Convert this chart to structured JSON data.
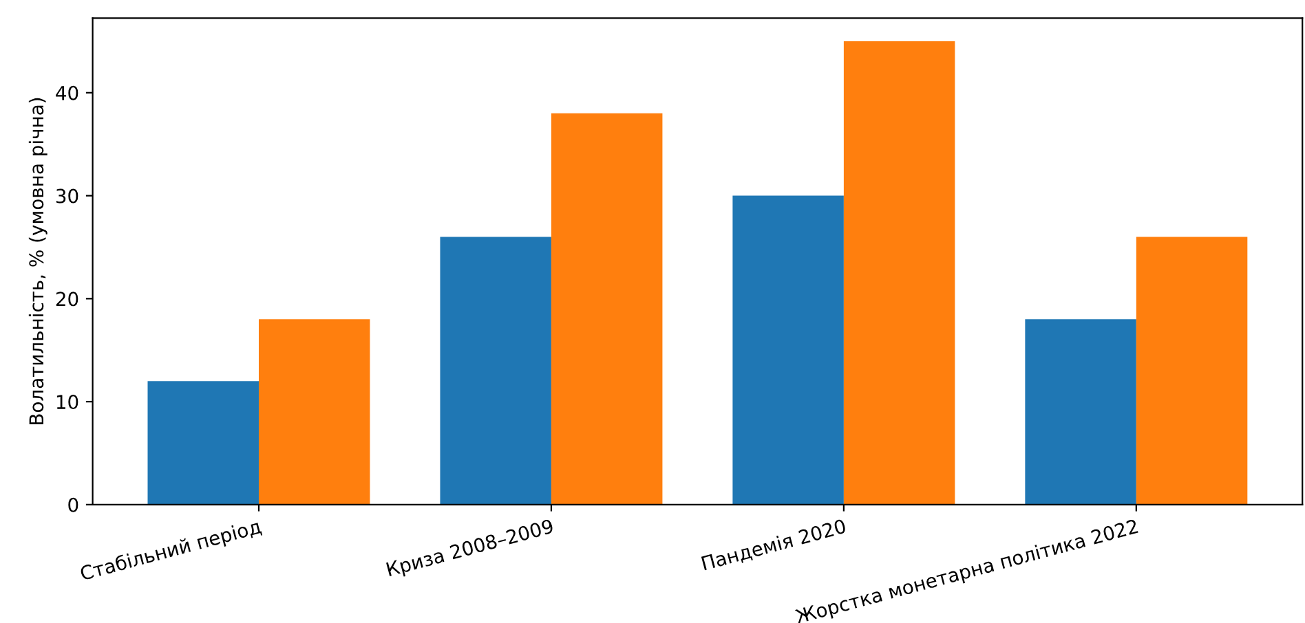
{
  "chart_data": {
    "type": "bar",
    "ylabel": "Волатильність, % (умовна річна)",
    "categories": [
      "Стабільний період",
      "Криза 2008–2009",
      "Пандемія 2020",
      "Жорстка монетарна політика 2022"
    ],
    "series": [
      {
        "color": "#1f77b4",
        "values": [
          12,
          26,
          30,
          18
        ]
      },
      {
        "color": "#ff7f0e",
        "values": [
          18,
          38,
          45,
          26
        ]
      }
    ],
    "ylim": [
      0,
      47.25
    ],
    "yticks": [
      0,
      10,
      20,
      30,
      40
    ],
    "grid": false,
    "legend": false
  }
}
